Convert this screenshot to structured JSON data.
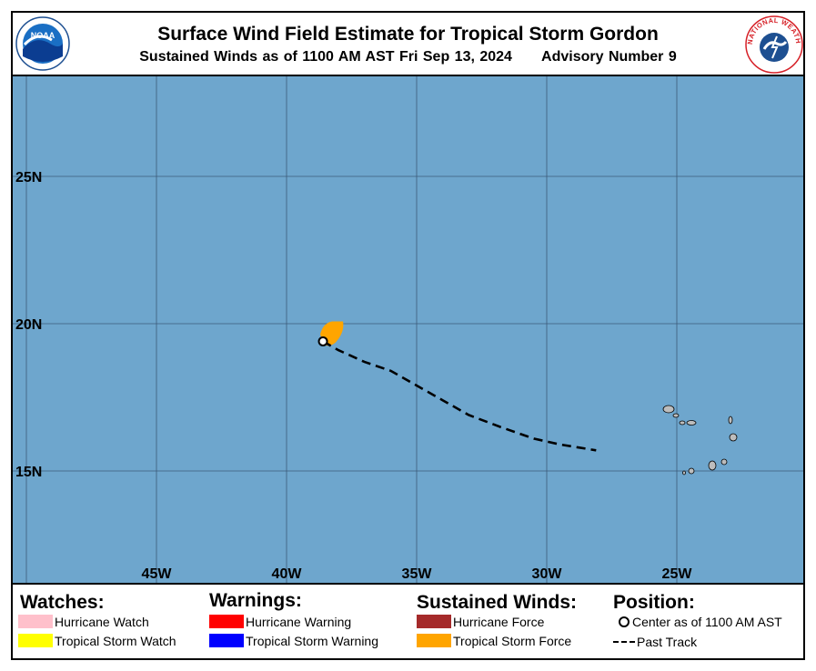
{
  "header": {
    "title": "Surface Wind Field Estimate for Tropical Storm Gordon",
    "subtitle": "Sustained Winds as of 1100 AM AST Fri Sep 13, 2024",
    "advisory": "Advisory Number 9"
  },
  "logos": {
    "noaa_text": "NOAA",
    "nws_text": "NATIONAL WEATHER SERVICE"
  },
  "map": {
    "ocean_color": "#6ea6cd",
    "grid_color": "#3c5a78",
    "lat_labels": [
      "25N",
      "20N",
      "15N"
    ],
    "lon_labels": [
      "45W",
      "40W",
      "35W",
      "30W",
      "25W"
    ],
    "storm_center": {
      "lat": 19.4,
      "lon": -38.6
    },
    "wind_field_color": "#ffa500",
    "past_track": [
      {
        "lat": 19.4,
        "lon": -38.6
      },
      {
        "lat": 19.1,
        "lon": -38.0
      },
      {
        "lat": 18.7,
        "lon": -37.0
      },
      {
        "lat": 18.4,
        "lon": -36.0
      },
      {
        "lat": 17.9,
        "lon": -35.0
      },
      {
        "lat": 17.4,
        "lon": -34.0
      },
      {
        "lat": 16.9,
        "lon": -33.0
      },
      {
        "lat": 16.5,
        "lon": -31.8
      },
      {
        "lat": 16.1,
        "lon": -30.5
      },
      {
        "lat": 15.9,
        "lon": -29.5
      },
      {
        "lat": 15.7,
        "lon": -28.1
      }
    ]
  },
  "legend": {
    "watches": {
      "heading": "Watches:",
      "items": [
        {
          "label": "Hurricane Watch",
          "color": "#ffc0cb"
        },
        {
          "label": "Tropical Storm Watch",
          "color": "#ffff00"
        }
      ]
    },
    "warnings": {
      "heading": "Warnings:",
      "items": [
        {
          "label": "Hurricane Warning",
          "color": "#ff0000"
        },
        {
          "label": "Tropical Storm Warning",
          "color": "#0000ff"
        }
      ]
    },
    "winds": {
      "heading": "Sustained Winds:",
      "items": [
        {
          "label": "Hurricane Force",
          "color": "#a52a2a"
        },
        {
          "label": "Tropical Storm Force",
          "color": "#ffa500"
        }
      ]
    },
    "position": {
      "heading": "Position:",
      "center_label": "Center as of 1100 AM AST",
      "track_label": "Past Track"
    }
  }
}
